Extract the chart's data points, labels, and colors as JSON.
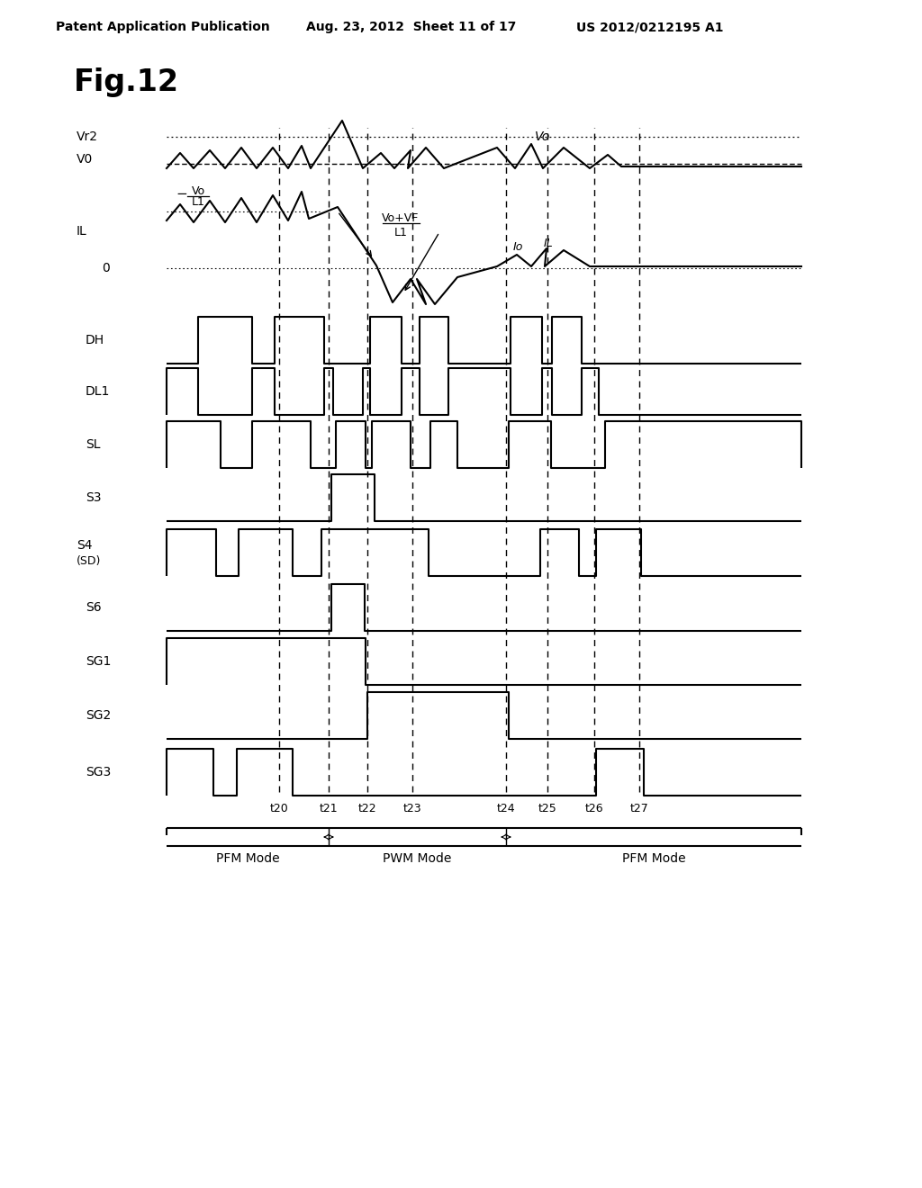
{
  "title": "Fig.12",
  "header_left": "Patent Application Publication",
  "header_mid": "Aug. 23, 2012  Sheet 11 of 17",
  "header_right": "US 2012/0212195 A1",
  "bg_color": "#ffffff",
  "t_labels": [
    "t20",
    "t21",
    "t22",
    "t23",
    "t24",
    "t25",
    "t26",
    "t27"
  ],
  "mode_labels": [
    "PFM Mode",
    "PWM Mode",
    "PFM Mode"
  ],
  "signal_labels": [
    "DH",
    "DL1",
    "SL",
    "S3",
    "S4",
    "S6",
    "SG1",
    "SG2",
    "SG3"
  ],
  "signal_label2": [
    "",
    "",
    "",
    "",
    "(SD)",
    "",
    "",
    "",
    ""
  ]
}
